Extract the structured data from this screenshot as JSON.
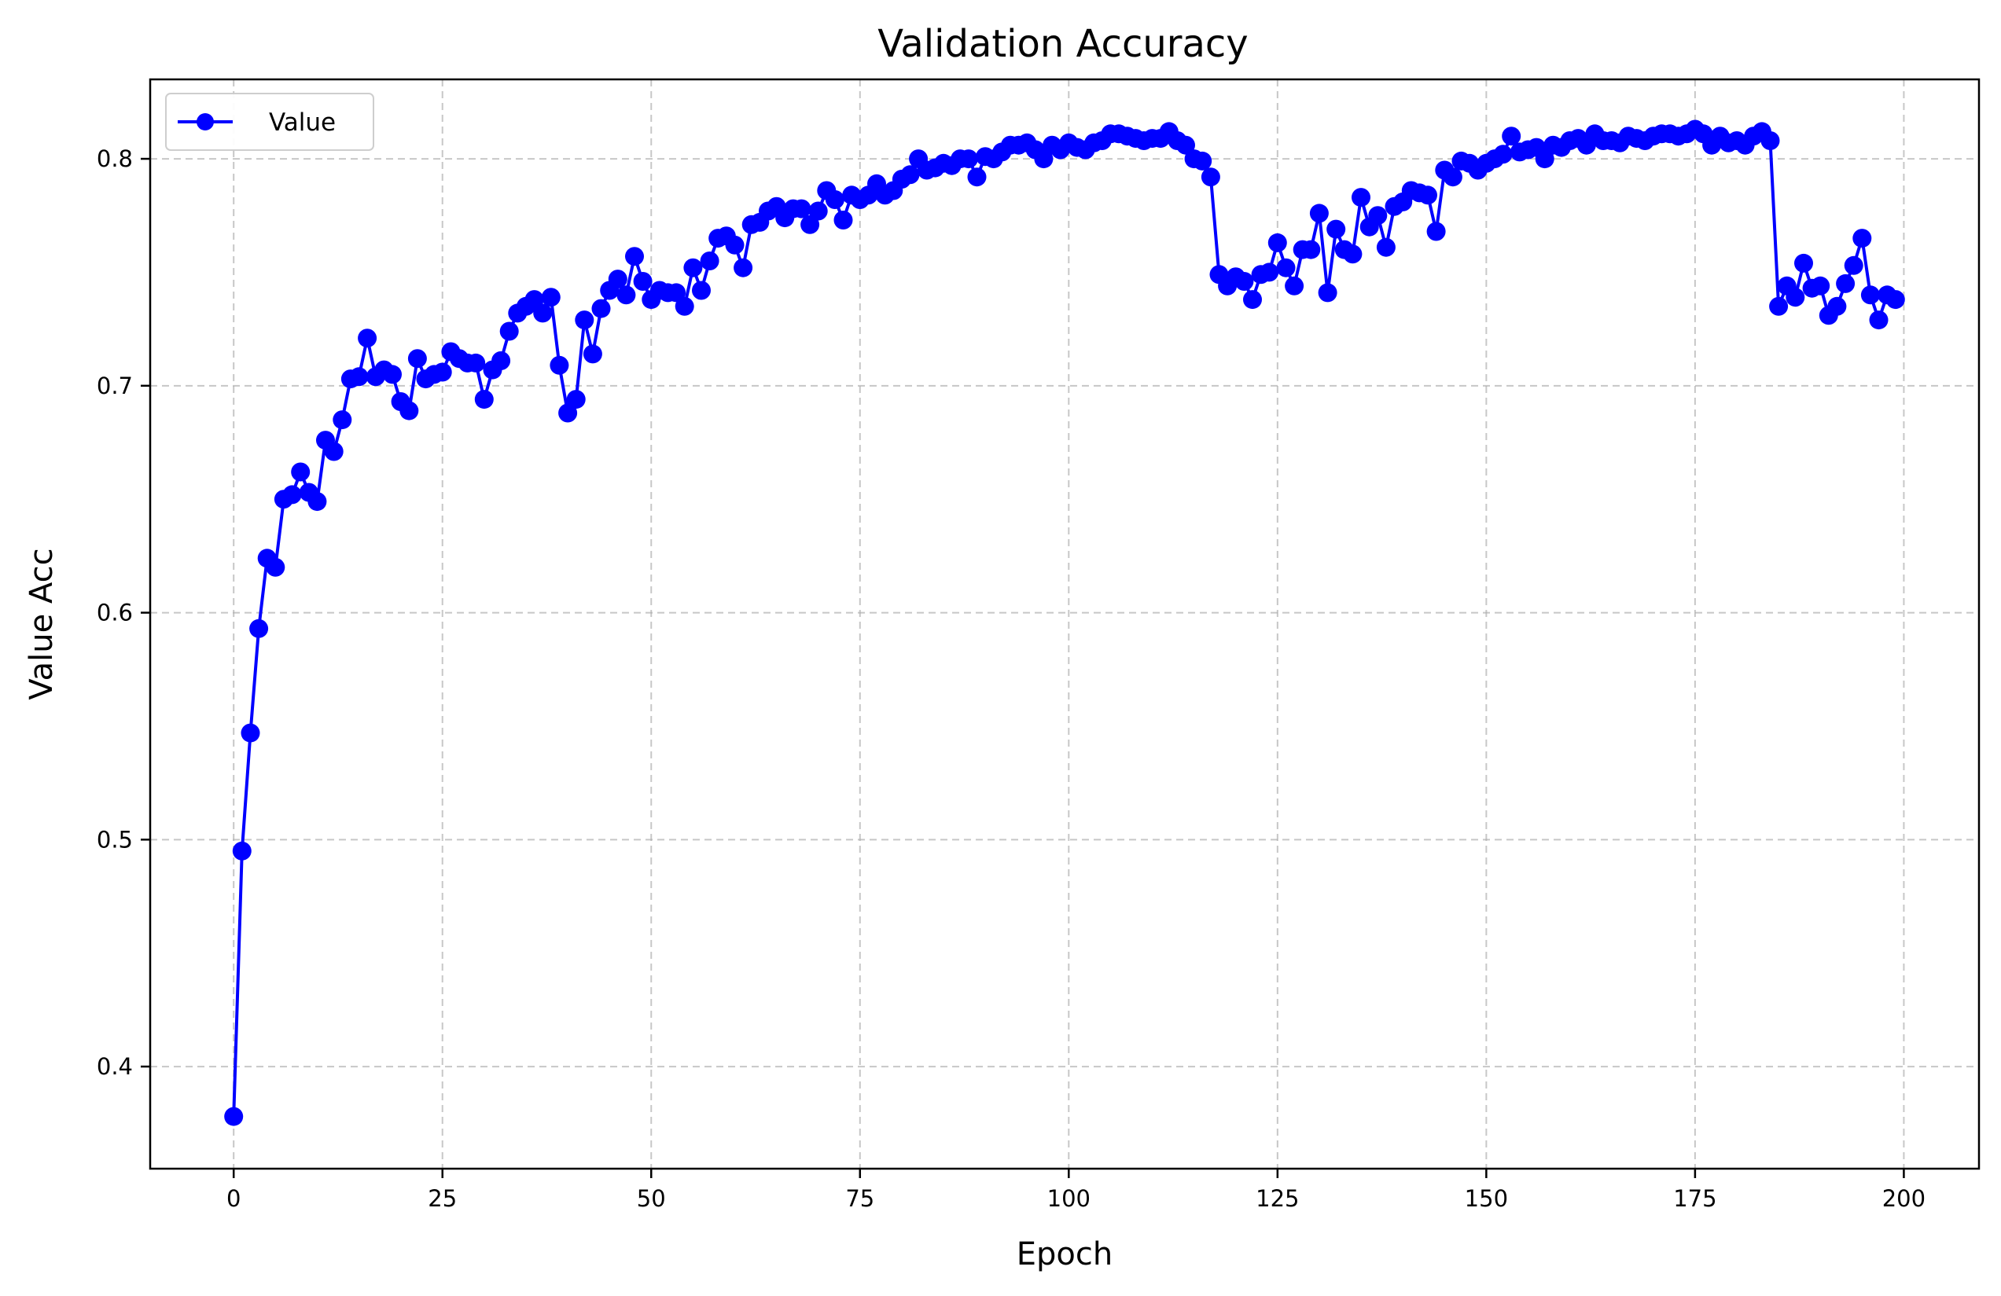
{
  "chart_data": {
    "type": "line",
    "title": "Validation Accuracy",
    "xlabel": "Epoch",
    "ylabel": "Value Acc",
    "xlim": [
      -10,
      209
    ],
    "ylim": [
      0.355,
      0.835
    ],
    "xticks": [
      0,
      25,
      50,
      75,
      100,
      125,
      150,
      175,
      200
    ],
    "yticks": [
      0.4,
      0.5,
      0.6,
      0.7,
      0.8
    ],
    "xtick_labels": [
      "0",
      "25",
      "50",
      "75",
      "100",
      "125",
      "150",
      "175",
      "200"
    ],
    "ytick_labels": [
      "0.4",
      "0.5",
      "0.6",
      "0.7",
      "0.8"
    ],
    "grid": true,
    "legend_position": "upper-left",
    "colors": {
      "series": "#0000ff",
      "grid": "#b0b0b0",
      "axes": "#000000"
    },
    "series": [
      {
        "name": "Value",
        "marker": "circle",
        "x": [
          0,
          1,
          2,
          3,
          4,
          5,
          6,
          7,
          8,
          9,
          10,
          11,
          12,
          13,
          14,
          15,
          16,
          17,
          18,
          19,
          20,
          21,
          22,
          23,
          24,
          25,
          26,
          27,
          28,
          29,
          30,
          31,
          32,
          33,
          34,
          35,
          36,
          37,
          38,
          39,
          40,
          41,
          42,
          43,
          44,
          45,
          46,
          47,
          48,
          49,
          50,
          51,
          52,
          53,
          54,
          55,
          56,
          57,
          58,
          59,
          60,
          61,
          62,
          63,
          64,
          65,
          66,
          67,
          68,
          69,
          70,
          71,
          72,
          73,
          74,
          75,
          76,
          77,
          78,
          79,
          80,
          81,
          82,
          83,
          84,
          85,
          86,
          87,
          88,
          89,
          90,
          91,
          92,
          93,
          94,
          95,
          96,
          97,
          98,
          99,
          100,
          101,
          102,
          103,
          104,
          105,
          106,
          107,
          108,
          109,
          110,
          111,
          112,
          113,
          114,
          115,
          116,
          117,
          118,
          119,
          120,
          121,
          122,
          123,
          124,
          125,
          126,
          127,
          128,
          129,
          130,
          131,
          132,
          133,
          134,
          135,
          136,
          137,
          138,
          139,
          140,
          141,
          142,
          143,
          144,
          145,
          146,
          147,
          148,
          149,
          150,
          151,
          152,
          153,
          154,
          155,
          156,
          157,
          158,
          159,
          160,
          161,
          162,
          163,
          164,
          165,
          166,
          167,
          168,
          169,
          170,
          171,
          172,
          173,
          174,
          175,
          176,
          177,
          178,
          179,
          180,
          181,
          182,
          183,
          184,
          185,
          186,
          187,
          188,
          189,
          190,
          191,
          192,
          193,
          194,
          195,
          196,
          197,
          198,
          199
        ],
        "values": [
          0.378,
          0.495,
          0.547,
          0.593,
          0.624,
          0.62,
          0.65,
          0.652,
          0.662,
          0.653,
          0.649,
          0.676,
          0.671,
          0.685,
          0.703,
          0.704,
          0.721,
          0.704,
          0.707,
          0.705,
          0.693,
          0.689,
          0.712,
          0.703,
          0.705,
          0.706,
          0.715,
          0.712,
          0.71,
          0.71,
          0.694,
          0.707,
          0.711,
          0.724,
          0.732,
          0.735,
          0.738,
          0.732,
          0.739,
          0.709,
          0.688,
          0.694,
          0.729,
          0.714,
          0.734,
          0.742,
          0.747,
          0.74,
          0.757,
          0.746,
          0.738,
          0.742,
          0.741,
          0.741,
          0.735,
          0.752,
          0.742,
          0.755,
          0.765,
          0.766,
          0.762,
          0.752,
          0.771,
          0.772,
          0.777,
          0.779,
          0.774,
          0.778,
          0.778,
          0.771,
          0.777,
          0.786,
          0.782,
          0.773,
          0.784,
          0.782,
          0.784,
          0.789,
          0.784,
          0.786,
          0.791,
          0.793,
          0.8,
          0.795,
          0.796,
          0.798,
          0.797,
          0.8,
          0.8,
          0.792,
          0.801,
          0.8,
          0.803,
          0.806,
          0.806,
          0.807,
          0.804,
          0.8,
          0.806,
          0.804,
          0.807,
          0.805,
          0.804,
          0.807,
          0.808,
          0.811,
          0.811,
          0.81,
          0.809,
          0.808,
          0.809,
          0.809,
          0.812,
          0.808,
          0.806,
          0.8,
          0.799,
          0.792,
          0.749,
          0.744,
          0.748,
          0.746,
          0.738,
          0.749,
          0.75,
          0.763,
          0.752,
          0.744,
          0.76,
          0.76,
          0.776,
          0.741,
          0.769,
          0.76,
          0.758,
          0.783,
          0.77,
          0.775,
          0.761,
          0.779,
          0.781,
          0.786,
          0.785,
          0.784,
          0.768,
          0.795,
          0.792,
          0.799,
          0.798,
          0.795,
          0.798,
          0.8,
          0.802,
          0.81,
          0.803,
          0.804,
          0.805,
          0.8,
          0.806,
          0.805,
          0.808,
          0.809,
          0.806,
          0.811,
          0.808,
          0.808,
          0.807,
          0.81,
          0.809,
          0.808,
          0.81,
          0.811,
          0.811,
          0.81,
          0.811,
          0.813,
          0.811,
          0.806,
          0.81,
          0.807,
          0.808,
          0.806,
          0.81,
          0.812,
          0.808,
          0.735,
          0.744,
          0.739,
          0.754,
          0.743,
          0.744,
          0.731,
          0.735,
          0.745,
          0.753,
          0.765,
          0.74,
          0.729,
          0.74,
          0.738
        ]
      }
    ]
  },
  "legend": {
    "label": "Value"
  }
}
